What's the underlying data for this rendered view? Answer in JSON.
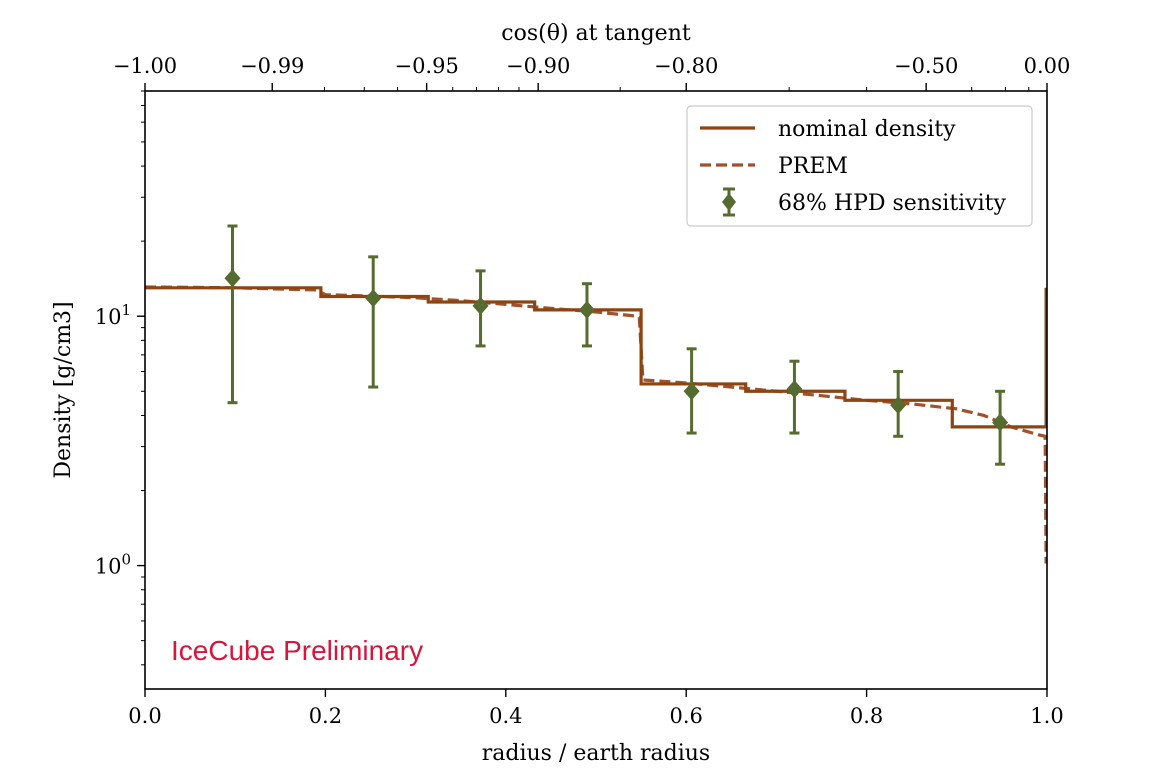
{
  "chart_data": {
    "type": "line",
    "xlabel": "radius / earth radius",
    "ylabel": "Density [g/cm3]",
    "top_xlabel": "cos(θ) at tangent",
    "xlim": [
      0.0,
      1.0
    ],
    "ylim": [
      0.32,
      80
    ],
    "yscale": "log",
    "x_ticks": [
      {
        "value": 0.0,
        "label": "0.0"
      },
      {
        "value": 0.2,
        "label": "0.2"
      },
      {
        "value": 0.4,
        "label": "0.4"
      },
      {
        "value": 0.6,
        "label": "0.6"
      },
      {
        "value": 0.8,
        "label": "0.8"
      },
      {
        "value": 1.0,
        "label": "1.0"
      }
    ],
    "top_ticks": [
      {
        "value": -1.0,
        "label": "−1.00"
      },
      {
        "value": -0.99,
        "label": "−0.99"
      },
      {
        "value": -0.95,
        "label": "−0.95"
      },
      {
        "value": -0.9,
        "label": "−0.90"
      },
      {
        "value": -0.8,
        "label": "−0.80"
      },
      {
        "value": -0.5,
        "label": "−0.50"
      },
      {
        "value": 0.0,
        "label": "0.00"
      }
    ],
    "y_ticks": [
      {
        "value": 1,
        "label_base": "10",
        "label_exp": "0"
      },
      {
        "value": 10,
        "label_base": "10",
        "label_exp": "1"
      }
    ],
    "legend": {
      "placement": "top-right",
      "entries": [
        "nominal density",
        "PREM",
        "68% HPD sensitivity"
      ]
    },
    "colors": {
      "nominal": "#8b4513",
      "prem": "#a0522d",
      "points": "#556b2f",
      "watermark": "#dc143c"
    },
    "series": [
      {
        "name": "nominal density",
        "style": "solid",
        "x": [
          0.0,
          0.195,
          0.195,
          0.314,
          0.314,
          0.432,
          0.432,
          0.55,
          0.55,
          0.666,
          0.666,
          0.776,
          0.776,
          0.895,
          0.895,
          0.999,
          0.999
        ],
        "y": [
          13.0,
          13.0,
          12.0,
          12.0,
          11.4,
          11.4,
          10.6,
          10.6,
          5.35,
          5.35,
          5.0,
          5.0,
          4.6,
          4.6,
          3.6,
          3.6,
          13.0
        ]
      },
      {
        "name": "PREM",
        "style": "dashed",
        "x": [
          0.0,
          0.05,
          0.1,
          0.15,
          0.19,
          0.2,
          0.25,
          0.3,
          0.35,
          0.4,
          0.45,
          0.5,
          0.546,
          0.548,
          0.552,
          0.6,
          0.65,
          0.7,
          0.75,
          0.8,
          0.85,
          0.9,
          0.93,
          0.96,
          0.99,
          0.998,
          0.999
        ],
        "y": [
          13.1,
          13.05,
          13.0,
          12.85,
          12.75,
          12.2,
          12.05,
          11.85,
          11.55,
          11.15,
          10.75,
          10.4,
          10.0,
          9.9,
          5.55,
          5.4,
          5.2,
          5.0,
          4.8,
          4.6,
          4.45,
          4.25,
          4.0,
          3.6,
          3.35,
          3.3,
          1.02
        ]
      },
      {
        "name": "68% HPD sensitivity",
        "style": "errorbar",
        "x": [
          0.097,
          0.253,
          0.372,
          0.49,
          0.606,
          0.72,
          0.835,
          0.948
        ],
        "y": [
          14.2,
          11.8,
          11.0,
          10.6,
          5.0,
          5.1,
          4.4,
          3.75
        ],
        "y_low": [
          4.5,
          5.2,
          7.6,
          7.6,
          3.4,
          3.4,
          3.3,
          2.55
        ],
        "y_high": [
          23.0,
          17.3,
          15.2,
          13.5,
          7.4,
          6.6,
          6.0,
          5.0
        ]
      }
    ]
  },
  "watermark": "IceCube Preliminary"
}
